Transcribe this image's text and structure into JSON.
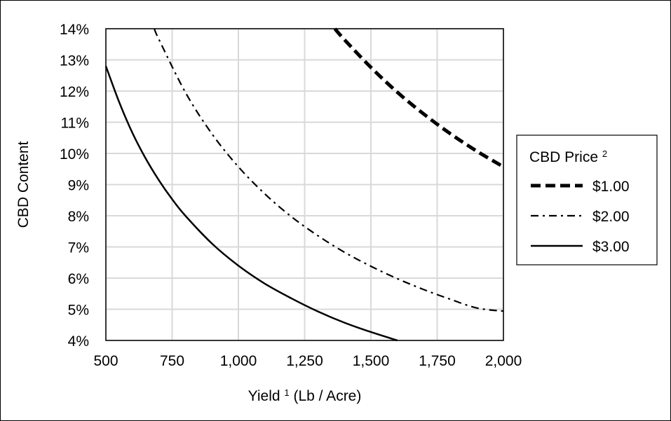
{
  "chart_data": {
    "type": "line",
    "xlabel": "Yield",
    "xlabel_sup": "1",
    "xlabel_unit": " (Lb / Acre)",
    "ylabel": "CBD Content",
    "xlim": [
      500,
      2000
    ],
    "ylim": [
      0.04,
      0.14
    ],
    "x_ticks": [
      500,
      750,
      1000,
      1250,
      1500,
      1750,
      2000
    ],
    "x_tick_labels": [
      "500",
      "750",
      "1,000",
      "1,250",
      "1,500",
      "1,750",
      "2,000"
    ],
    "y_ticks": [
      0.04,
      0.05,
      0.06,
      0.07,
      0.08,
      0.09,
      0.1,
      0.11,
      0.12,
      0.13,
      0.14
    ],
    "y_tick_labels": [
      "4%",
      "5%",
      "6%",
      "7%",
      "8%",
      "9%",
      "10%",
      "11%",
      "12%",
      "13%",
      "14%"
    ],
    "grid": true,
    "legend": {
      "title": "CBD Price",
      "title_sup": "2",
      "placement": "right"
    },
    "series": [
      {
        "name": "$1.00",
        "style": "dashed",
        "x": [
          1364,
          1400,
          1500,
          1600,
          1700,
          1800,
          1900,
          2000
        ],
        "y": [
          0.14,
          0.1365,
          0.1276,
          0.1196,
          0.1126,
          0.1063,
          0.1007,
          0.0957
        ]
      },
      {
        "name": "$2.00",
        "style": "dash-dot",
        "x": [
          683,
          700,
          800,
          900,
          1000,
          1100,
          1200,
          1300,
          1400,
          1500,
          1600,
          1700,
          1800,
          1900,
          2000
        ],
        "y": [
          0.14,
          0.1366,
          0.1196,
          0.1063,
          0.0957,
          0.087,
          0.0797,
          0.0736,
          0.0683,
          0.0638,
          0.0598,
          0.0563,
          0.0532,
          0.0504,
          0.0494
        ]
      },
      {
        "name": "$3.00",
        "style": "solid",
        "x": [
          500,
          550,
          600,
          650,
          700,
          750,
          800,
          900,
          1000,
          1100,
          1200,
          1300,
          1400,
          1500,
          1600
        ],
        "y": [
          0.128,
          0.1165,
          0.1066,
          0.0984,
          0.0914,
          0.0853,
          0.08,
          0.0711,
          0.064,
          0.0582,
          0.0535,
          0.0493,
          0.0457,
          0.0427,
          0.04
        ]
      }
    ]
  }
}
